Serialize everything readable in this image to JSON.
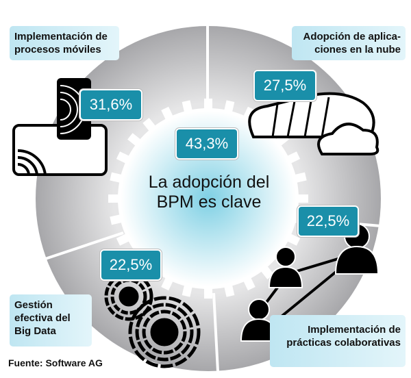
{
  "center": {
    "title_line1": "La adopción del",
    "title_line2": "BPM es clave",
    "value": "43,3%"
  },
  "segments": [
    {
      "label_line1": "Implementación de",
      "label_line2": "procesos móviles",
      "value": "31,6%",
      "icon": "mobile-devices-icon"
    },
    {
      "label_line1": "Adopción de aplica-",
      "label_line2": "ciones en la nube",
      "value": "27,5%",
      "icon": "cloud-icon"
    },
    {
      "label_line1": "Implementación de",
      "label_line2": "prácticas colaborativas",
      "value": "22,5%",
      "icon": "people-network-icon"
    },
    {
      "label_line1": "Gestión",
      "label_line2": "efectiva del",
      "label_line3": "Big Data",
      "value": "22,5%",
      "icon": "data-discs-icon"
    }
  ],
  "source": "Fuente: Software AG",
  "colors": {
    "accent": "#1a8fa9",
    "label_bg": "#c8eaf4",
    "ring": "#b9b9bb"
  }
}
